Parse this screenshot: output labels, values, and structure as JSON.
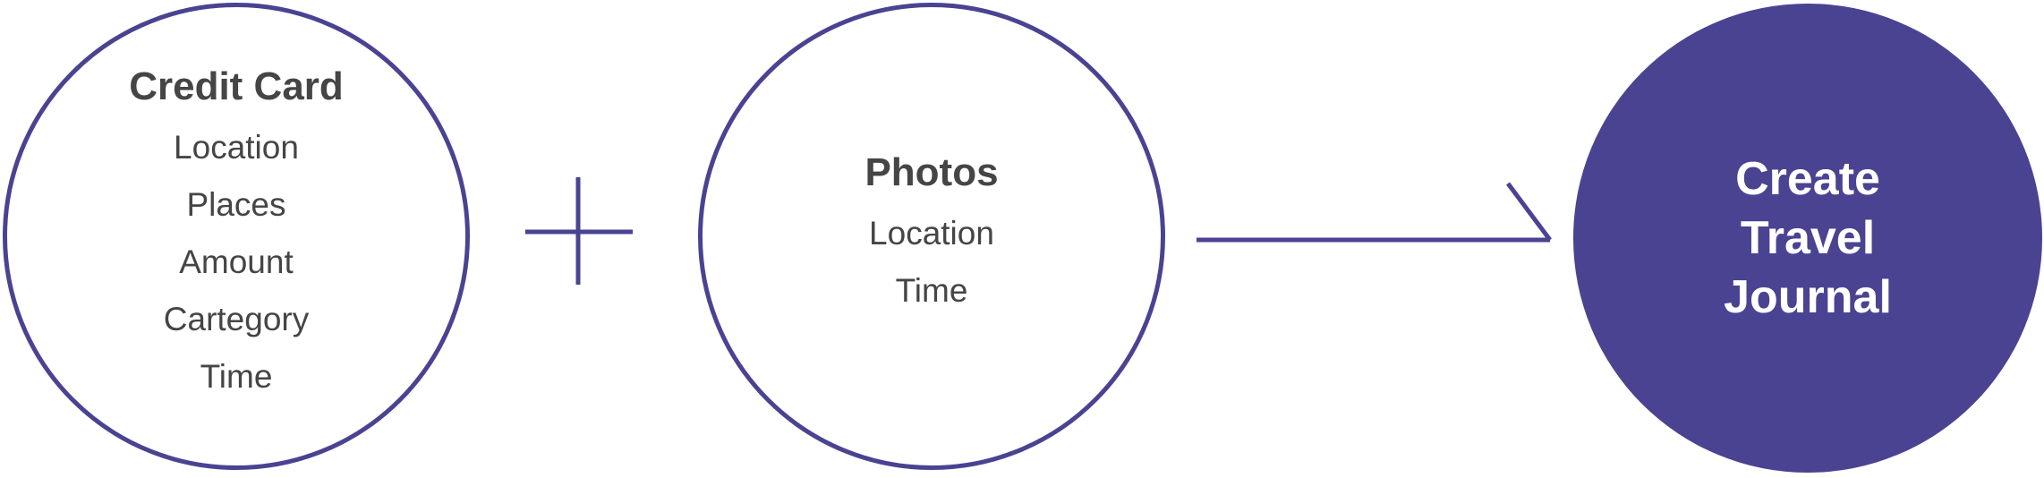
{
  "sources": [
    {
      "title": "Credit Card",
      "items": [
        "Location",
        "Places",
        "Amount",
        "Cartegory",
        "Time"
      ]
    },
    {
      "title": "Photos",
      "items": [
        "Location",
        "Time"
      ]
    }
  ],
  "result": {
    "lines": [
      "Create",
      "Travel",
      "Journal"
    ]
  },
  "colors": {
    "accent": "#4a4392",
    "text": "#454545",
    "background": "#ffffff"
  },
  "connectors": [
    "plus-icon",
    "arrow-right-icon"
  ]
}
